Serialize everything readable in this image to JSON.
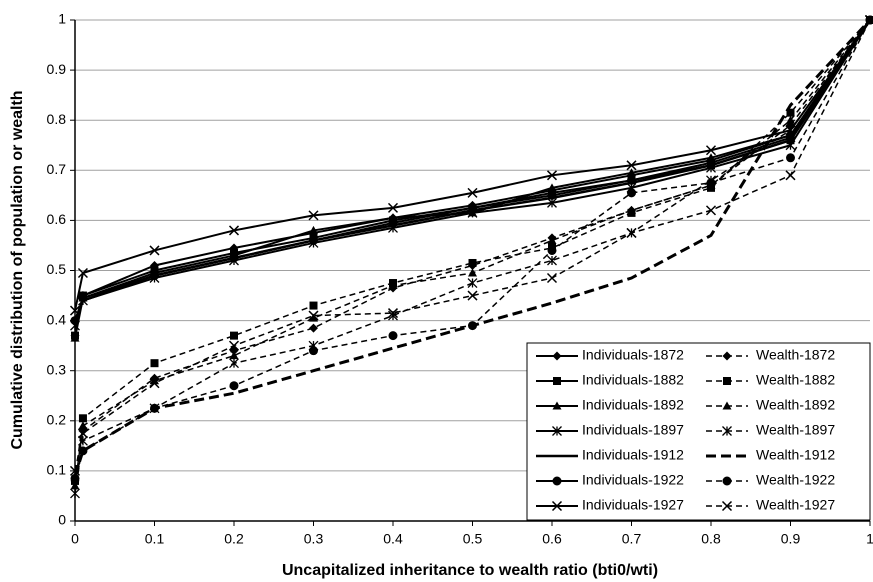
{
  "chart_data": {
    "type": "line",
    "xlabel": "Uncapitalized inheritance to wealth ratio (bti0/wti)",
    "ylabel": "Cumulative distribution of population or wealth",
    "x": [
      0,
      0.01,
      0.1,
      0.2,
      0.3,
      0.4,
      0.5,
      0.6,
      0.7,
      0.8,
      0.9,
      1
    ],
    "xlim": [
      0,
      1
    ],
    "xticks": [
      0,
      0.1,
      0.2,
      0.3,
      0.4,
      0.5,
      0.6,
      0.7,
      0.8,
      0.9,
      1
    ],
    "ylim": [
      0,
      1
    ],
    "yticks": [
      0,
      0.1,
      0.2,
      0.3,
      0.4,
      0.5,
      0.6,
      0.7,
      0.8,
      0.9,
      1
    ],
    "grid": true,
    "legend": "lower right",
    "series": [
      {
        "name": "Individuals-1872",
        "color": "#000000",
        "marker": "diamond",
        "line_style": "solid",
        "line_width": 2,
        "values": [
          0.37,
          0.45,
          0.51,
          0.545,
          0.575,
          0.605,
          0.63,
          0.66,
          0.69,
          0.72,
          0.77,
          1
        ]
      },
      {
        "name": "Individuals-1882",
        "color": "#000000",
        "marker": "square",
        "line_style": "solid",
        "line_width": 2,
        "values": [
          0.37,
          0.45,
          0.5,
          0.535,
          0.565,
          0.6,
          0.625,
          0.655,
          0.68,
          0.71,
          0.76,
          1
        ]
      },
      {
        "name": "Individuals-1892",
        "color": "#000000",
        "marker": "triangle",
        "line_style": "solid",
        "line_width": 2,
        "values": [
          0.365,
          0.445,
          0.495,
          0.53,
          0.58,
          0.605,
          0.615,
          0.665,
          0.695,
          0.725,
          0.77,
          1
        ]
      },
      {
        "name": "Individuals-1897",
        "color": "#000000",
        "marker": "asterisk",
        "line_style": "solid",
        "line_width": 2,
        "values": [
          0.39,
          0.44,
          0.485,
          0.52,
          0.555,
          0.585,
          0.615,
          0.635,
          0.665,
          0.705,
          0.75,
          1
        ]
      },
      {
        "name": "Individuals-1912",
        "color": "#000000",
        "marker": "none",
        "line_style": "solid",
        "line_width": 2.5,
        "values": [
          0.4,
          0.44,
          0.49,
          0.525,
          0.56,
          0.59,
          0.62,
          0.645,
          0.675,
          0.71,
          0.76,
          1
        ]
      },
      {
        "name": "Individuals-1922",
        "color": "#000000",
        "marker": "circle",
        "line_style": "solid",
        "line_width": 2,
        "values": [
          0.4,
          0.445,
          0.49,
          0.525,
          0.56,
          0.595,
          0.625,
          0.65,
          0.68,
          0.715,
          0.765,
          1
        ]
      },
      {
        "name": "Individuals-1927",
        "color": "#000000",
        "marker": "x",
        "line_style": "solid",
        "line_width": 2,
        "values": [
          0.42,
          0.495,
          0.54,
          0.58,
          0.61,
          0.625,
          0.655,
          0.69,
          0.71,
          0.74,
          0.78,
          1
        ]
      },
      {
        "name": "Wealth-1872",
        "color": "#000000",
        "marker": "diamond",
        "line_style": "dashed",
        "line_width": 1.5,
        "values": [
          0.08,
          0.18,
          0.285,
          0.34,
          0.385,
          0.465,
          0.51,
          0.565,
          0.62,
          0.67,
          0.79,
          1
        ]
      },
      {
        "name": "Wealth-1882",
        "color": "#000000",
        "marker": "square",
        "line_style": "dashed",
        "line_width": 1.5,
        "values": [
          0.08,
          0.205,
          0.315,
          0.37,
          0.43,
          0.475,
          0.515,
          0.545,
          0.615,
          0.665,
          0.815,
          1
        ]
      },
      {
        "name": "Wealth-1892",
        "color": "#000000",
        "marker": "triangle",
        "line_style": "dashed",
        "line_width": 1.5,
        "values": [
          0.07,
          0.19,
          0.28,
          0.33,
          0.405,
          0.47,
          0.495,
          0.56,
          0.62,
          0.67,
          0.8,
          1
        ]
      },
      {
        "name": "Wealth-1897",
        "color": "#000000",
        "marker": "asterisk",
        "line_style": "dashed",
        "line_width": 1.5,
        "values": [
          0.055,
          0.16,
          0.225,
          0.315,
          0.35,
          0.41,
          0.475,
          0.52,
          0.575,
          0.68,
          0.78,
          1
        ]
      },
      {
        "name": "Wealth-1912",
        "color": "#000000",
        "marker": "none",
        "line_style": "dashed",
        "line_width": 3,
        "values": [
          0.09,
          0.14,
          0.225,
          0.255,
          0.3,
          0.345,
          0.39,
          0.435,
          0.485,
          0.57,
          0.83,
          1
        ]
      },
      {
        "name": "Wealth-1922",
        "color": "#000000",
        "marker": "circle",
        "line_style": "dashed",
        "line_width": 1.5,
        "values": [
          0.085,
          0.14,
          0.225,
          0.27,
          0.34,
          0.37,
          0.39,
          0.54,
          0.655,
          0.675,
          0.725,
          1
        ]
      },
      {
        "name": "Wealth-1927",
        "color": "#000000",
        "marker": "x",
        "line_style": "dashed",
        "line_width": 1.5,
        "values": [
          0.1,
          0.175,
          0.275,
          0.35,
          0.41,
          0.415,
          0.45,
          0.485,
          0.575,
          0.62,
          0.69,
          1
        ]
      }
    ]
  }
}
